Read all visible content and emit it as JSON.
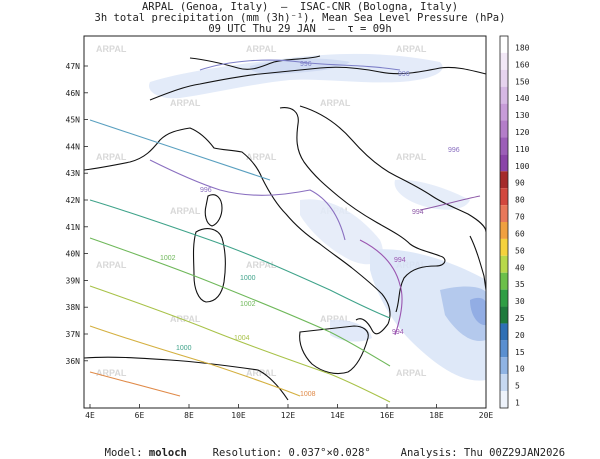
{
  "title": {
    "line1": "ARPAL (Genoa, Italy)  —  ISAC-CNR (Bologna, Italy)",
    "line2": "3h total precipitation (mm (3h)⁻¹), Mean Sea Level Pressure (hPa)",
    "line3": "09 UTC Thu 29 JAN  —  τ = 09h"
  },
  "axes": {
    "lat_labels": [
      "47N",
      "46N",
      "45N",
      "44N",
      "43N",
      "42N",
      "41N",
      "40N",
      "39N",
      "38N",
      "37N",
      "36N"
    ],
    "lon_labels": [
      "4E",
      "6E",
      "8E",
      "10E",
      "12E",
      "14E",
      "16E",
      "18E",
      "20E"
    ]
  },
  "colorbar": {
    "levels": [
      "180",
      "160",
      "150",
      "140",
      "130",
      "120",
      "110",
      "100",
      "90",
      "80",
      "70",
      "60",
      "50",
      "40",
      "35",
      "30",
      "25",
      "20",
      "15",
      "10",
      "5",
      "1"
    ],
    "colors": [
      "#ffffff",
      "#f2e8f6",
      "#e6d3ee",
      "#d6b8e4",
      "#c79cd8",
      "#b47ec9",
      "#9c5eb8",
      "#8a44a8",
      "#a52a2a",
      "#d2483e",
      "#e8785a",
      "#f0a040",
      "#f5d23c",
      "#b8d84a",
      "#6cc04a",
      "#2f9e44",
      "#1e7a3c",
      "#2e6fb5",
      "#5a8fd0",
      "#8fb3e3",
      "#c6d8f1",
      "#eef3fb"
    ]
  },
  "isobar_labels": [
    "996",
    "996",
    "996",
    "996",
    "994",
    "994",
    "994",
    "1002",
    "1000",
    "1002",
    "1000",
    "1004",
    "1008"
  ],
  "watermark": "ARPAL",
  "footer": {
    "model_label": "Model:",
    "model_value": "moloch",
    "resolution_label": "Resolution:",
    "resolution_value": "0.037°×0.028°",
    "analysis_label": "Analysis:",
    "analysis_value": "Thu 00Z29JAN2026"
  }
}
